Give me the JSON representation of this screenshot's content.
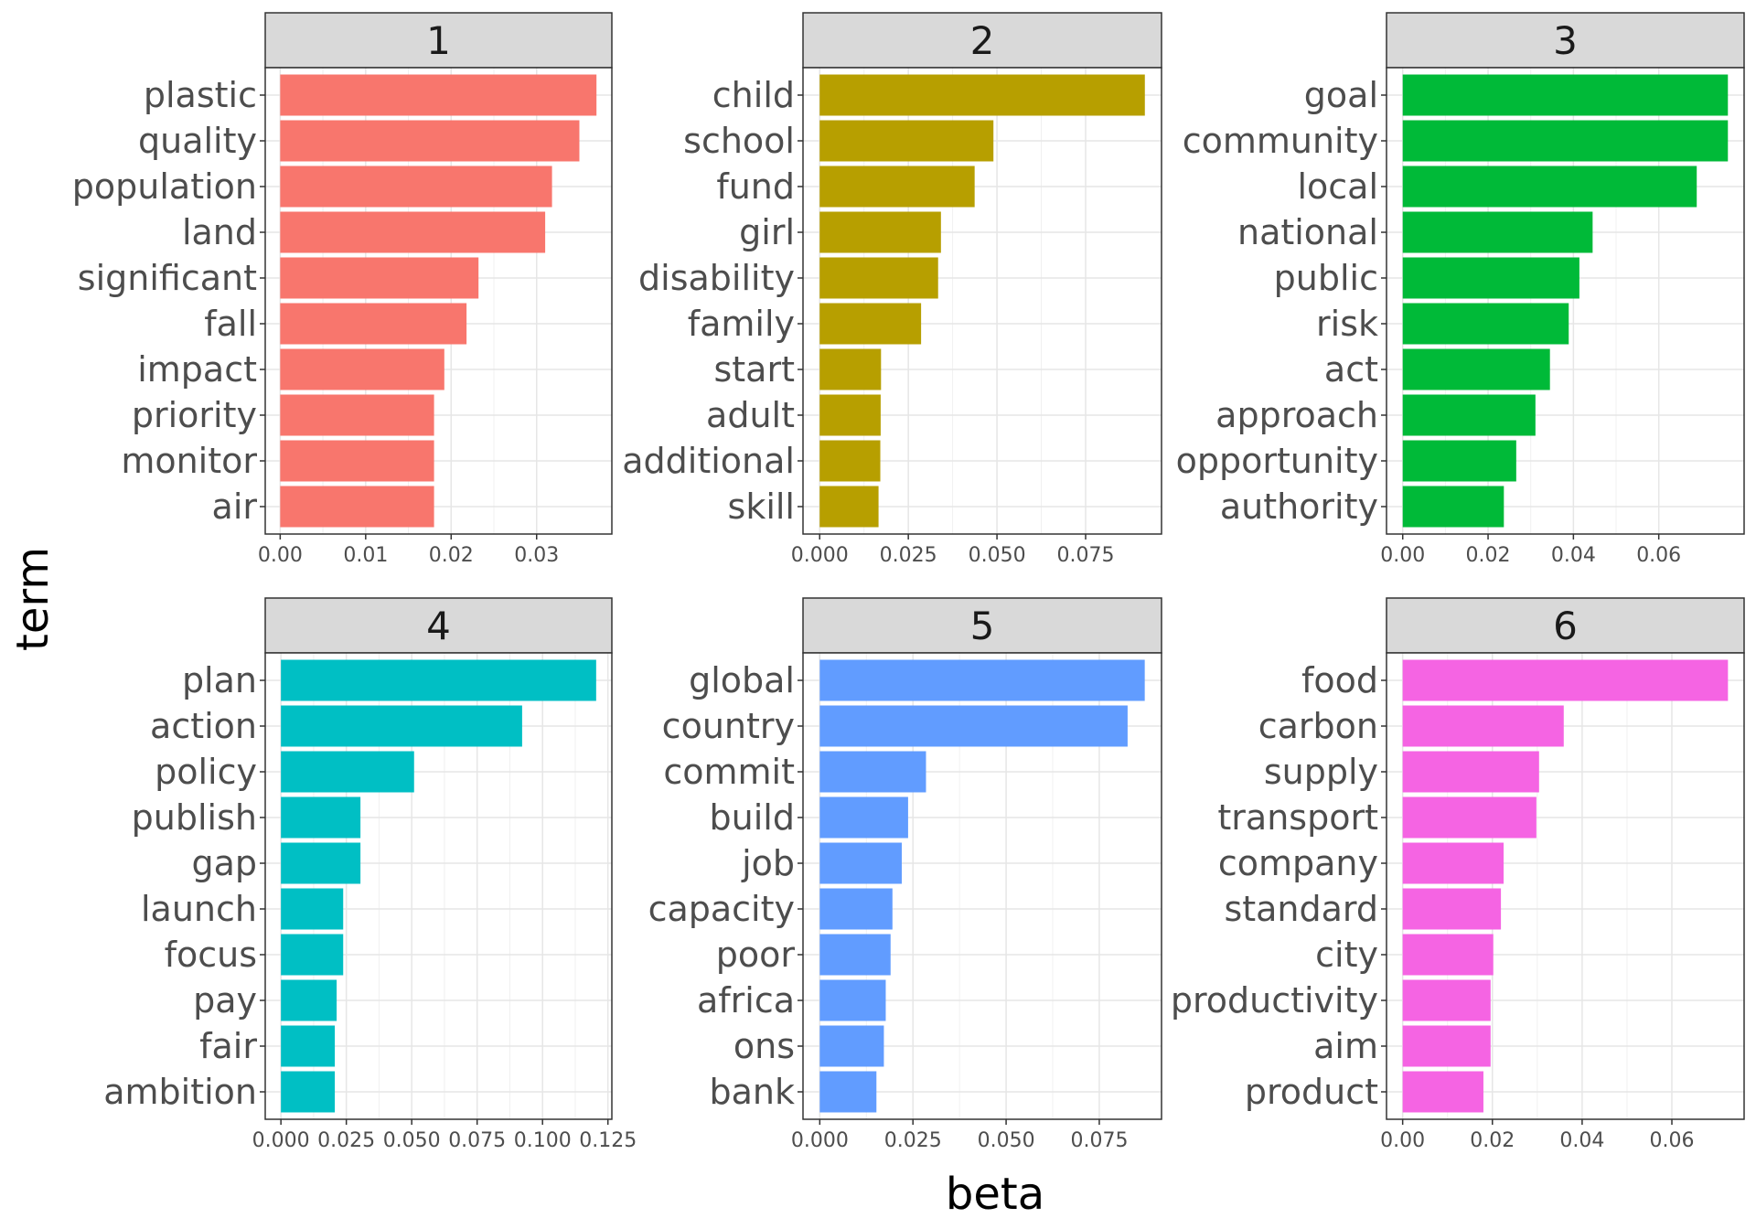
{
  "chart_data": {
    "type": "bar",
    "orientation": "horizontal",
    "layout": "facet grid, 2 rows x 3 columns, free scales",
    "xlabel": "beta",
    "ylabel": "term",
    "grid": true,
    "panels": [
      {
        "title": "1",
        "color": "#F8766D",
        "categories": [
          "plastic",
          "quality",
          "population",
          "land",
          "significant",
          "fall",
          "impact",
          "priority",
          "monitor",
          "air"
        ],
        "values": [
          0.037,
          0.035,
          0.0318,
          0.031,
          0.0232,
          0.0218,
          0.0192,
          0.018,
          0.018,
          0.018
        ],
        "xlim": [
          -0.00175,
          0.0388
        ],
        "ticks": [
          0.0,
          0.01,
          0.02,
          0.03
        ],
        "tick_labels": [
          "0.00",
          "0.01",
          "0.02",
          "0.03"
        ]
      },
      {
        "title": "2",
        "color": "#B79F00",
        "categories": [
          "child",
          "school",
          "fund",
          "girl",
          "disability",
          "family",
          "start",
          "adult",
          "additional",
          "skill"
        ],
        "values": [
          0.0917,
          0.049,
          0.0437,
          0.0342,
          0.0334,
          0.0286,
          0.0173,
          0.0172,
          0.0171,
          0.0166
        ],
        "xlim": [
          -0.0047,
          0.0964
        ],
        "ticks": [
          0.0,
          0.025,
          0.05,
          0.075
        ],
        "tick_labels": [
          "0.000",
          "0.025",
          "0.050",
          "0.075"
        ]
      },
      {
        "title": "3",
        "color": "#00BA38",
        "categories": [
          "goal",
          "community",
          "local",
          "national",
          "public",
          "risk",
          "act",
          "approach",
          "opportunity",
          "authority"
        ],
        "values": [
          0.0762,
          0.0762,
          0.0689,
          0.0445,
          0.0414,
          0.0389,
          0.0345,
          0.0311,
          0.0266,
          0.0237
        ],
        "xlim": [
          -0.0038,
          0.08
        ],
        "ticks": [
          0.0,
          0.02,
          0.04,
          0.06
        ],
        "tick_labels": [
          "0.00",
          "0.02",
          "0.04",
          "0.06"
        ]
      },
      {
        "title": "4",
        "color": "#00BFC4",
        "categories": [
          "plan",
          "action",
          "policy",
          "publish",
          "gap",
          "launch",
          "focus",
          "pay",
          "fair",
          "ambition"
        ],
        "values": [
          0.1205,
          0.0922,
          0.0509,
          0.0304,
          0.0304,
          0.0238,
          0.0238,
          0.0213,
          0.0206,
          0.0206
        ],
        "xlim": [
          -0.006,
          0.1265
        ],
        "ticks": [
          0.0,
          0.025,
          0.05,
          0.075,
          0.1,
          0.125
        ],
        "tick_labels": [
          "0.000",
          "0.025",
          "0.050",
          "0.075",
          "0.100",
          "0.125"
        ]
      },
      {
        "title": "5",
        "color": "#619CFF",
        "categories": [
          "global",
          "country",
          "commit",
          "build",
          "job",
          "capacity",
          "poor",
          "africa",
          "ons",
          "bank"
        ],
        "values": [
          0.0872,
          0.0826,
          0.0285,
          0.0237,
          0.022,
          0.0195,
          0.019,
          0.0177,
          0.0172,
          0.0152
        ],
        "xlim": [
          -0.0045,
          0.0917
        ],
        "ticks": [
          0.0,
          0.025,
          0.05,
          0.075
        ],
        "tick_labels": [
          "0.000",
          "0.025",
          "0.050",
          "0.075"
        ]
      },
      {
        "title": "6",
        "color": "#F564E3",
        "categories": [
          "food",
          "carbon",
          "supply",
          "transport",
          "company",
          "standard",
          "city",
          "productivity",
          "aim",
          "product"
        ],
        "values": [
          0.0725,
          0.0359,
          0.0304,
          0.0298,
          0.0225,
          0.0219,
          0.0202,
          0.0196,
          0.0196,
          0.018
        ],
        "xlim": [
          -0.0036,
          0.0761
        ],
        "ticks": [
          0.0,
          0.02,
          0.04,
          0.06
        ],
        "tick_labels": [
          "0.00",
          "0.02",
          "0.04",
          "0.06"
        ]
      }
    ]
  }
}
